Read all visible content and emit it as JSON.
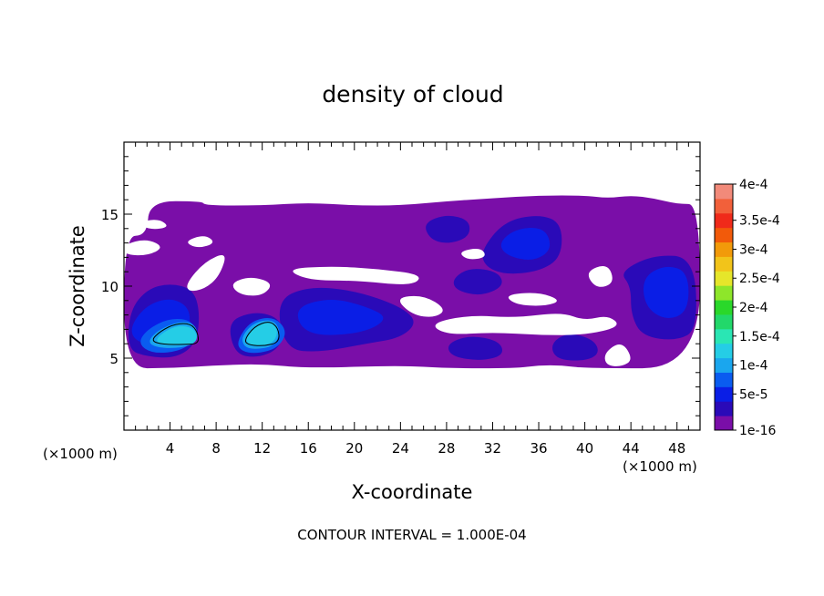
{
  "chart_data": {
    "type": "heatmap",
    "title": "density of cloud",
    "xlabel": "X-coordinate",
    "ylabel": "Z-coordinate",
    "x_unit_left": "(×1000 m)",
    "x_unit_right": "(×1000 m)",
    "xlim": [
      0,
      50
    ],
    "ylim": [
      0,
      20
    ],
    "x_ticks": [
      4,
      8,
      12,
      16,
      20,
      24,
      28,
      32,
      36,
      40,
      44,
      48
    ],
    "y_ticks": [
      5,
      10,
      15
    ],
    "x_minor_step": 1,
    "y_minor_step": 1,
    "grid": false,
    "footnote": "CONTOUR INTERVAL = 1.000E-04",
    "colorbar": {
      "placement": "right",
      "levels": [
        {
          "label": "1e-16",
          "color": "#7a0ea8"
        },
        {
          "label": "",
          "color": "#2a0ab8"
        },
        {
          "label": "5e-5",
          "color": "#0a1ee6"
        },
        {
          "label": "",
          "color": "#0a5cf0"
        },
        {
          "label": "1e-4",
          "color": "#1aa6ee"
        },
        {
          "label": "",
          "color": "#25cde6"
        },
        {
          "label": "1.5e-4",
          "color": "#2ae6b4"
        },
        {
          "label": "",
          "color": "#22d86a"
        },
        {
          "label": "2e-4",
          "color": "#2ad82a"
        },
        {
          "label": "",
          "color": "#8ee62a"
        },
        {
          "label": "2.5e-4",
          "color": "#e6e62a"
        },
        {
          "label": "",
          "color": "#f2c41a"
        },
        {
          "label": "3e-4",
          "color": "#f29a0a"
        },
        {
          "label": "",
          "color": "#f25a0a"
        },
        {
          "label": "3.5e-4",
          "color": "#f02a1a"
        },
        {
          "label": "",
          "color": "#f2603a"
        },
        {
          "label": "4e-4",
          "color": "#f28a7a"
        }
      ]
    },
    "regions": [
      {
        "level": 0,
        "points": [
          [
            0,
            13.5
          ],
          [
            2,
            13.5
          ],
          [
            2.2,
            15.9
          ],
          [
            6.8,
            15.9
          ],
          [
            7,
            15.6
          ],
          [
            12,
            15.6
          ],
          [
            16,
            15.8
          ],
          [
            20,
            15.6
          ],
          [
            24,
            15.6
          ],
          [
            28,
            15.9
          ],
          [
            32,
            16.1
          ],
          [
            36,
            16.3
          ],
          [
            40,
            16.3
          ],
          [
            42,
            16.1
          ],
          [
            44,
            16.3
          ],
          [
            46,
            16.1
          ],
          [
            48,
            15.7
          ],
          [
            50,
            15.7
          ],
          [
            50,
            4.3
          ],
          [
            40,
            4.3
          ],
          [
            38,
            4.5
          ],
          [
            36,
            4.5
          ],
          [
            34,
            4.3
          ],
          [
            28,
            4.3
          ],
          [
            24,
            4.5
          ],
          [
            16,
            4.3
          ],
          [
            12,
            4.6
          ],
          [
            8,
            4.5
          ],
          [
            4,
            4.3
          ],
          [
            0,
            4.3
          ]
        ]
      },
      {
        "level": 1,
        "points": [
          [
            0.5,
            8.3
          ],
          [
            2,
            9.8
          ],
          [
            4,
            10.2
          ],
          [
            6,
            9.8
          ],
          [
            6.6,
            8.2
          ],
          [
            6.3,
            6
          ],
          [
            4.5,
            5
          ],
          [
            2,
            5.1
          ],
          [
            0.3,
            5.6
          ]
        ]
      },
      {
        "level": 1,
        "points": [
          [
            9,
            7.5
          ],
          [
            11,
            8.2
          ],
          [
            13,
            8
          ],
          [
            14,
            7
          ],
          [
            13.4,
            5.6
          ],
          [
            11.5,
            5
          ],
          [
            9.6,
            5.3
          ]
        ]
      },
      {
        "level": 1,
        "points": [
          [
            13.2,
            9
          ],
          [
            16,
            10
          ],
          [
            20,
            9.7
          ],
          [
            24,
            8.6
          ],
          [
            25.5,
            7.5
          ],
          [
            24,
            6.4
          ],
          [
            21,
            6
          ],
          [
            17,
            5.4
          ],
          [
            14,
            5.6
          ]
        ]
      },
      {
        "level": 1,
        "points": [
          [
            26,
            14.4
          ],
          [
            28,
            15
          ],
          [
            30,
            14.6
          ],
          [
            30,
            13.4
          ],
          [
            28,
            12.9
          ],
          [
            26.5,
            13.3
          ]
        ]
      },
      {
        "level": 1,
        "points": [
          [
            31,
            12.5
          ],
          [
            33,
            14.5
          ],
          [
            36,
            15
          ],
          [
            38,
            14.4
          ],
          [
            38,
            12
          ],
          [
            36,
            11
          ],
          [
            33,
            10.8
          ],
          [
            31.3,
            11.4
          ]
        ]
      },
      {
        "level": 1,
        "points": [
          [
            28.5,
            10.5
          ],
          [
            30,
            11.3
          ],
          [
            32.5,
            11
          ],
          [
            33,
            10
          ],
          [
            31,
            9.3
          ],
          [
            28.8,
            9.7
          ]
        ]
      },
      {
        "level": 1,
        "points": [
          [
            43,
            11
          ],
          [
            46,
            12.2
          ],
          [
            49.5,
            12
          ],
          [
            49.8,
            7
          ],
          [
            48,
            6.2
          ],
          [
            45,
            6.5
          ],
          [
            44,
            8
          ],
          [
            44,
            10
          ]
        ]
      },
      {
        "level": 1,
        "points": [
          [
            37,
            6
          ],
          [
            38.5,
            6.8
          ],
          [
            40.8,
            6.3
          ],
          [
            41.3,
            5.3
          ],
          [
            40,
            4.8
          ],
          [
            37.5,
            4.9
          ]
        ]
      },
      {
        "level": 1,
        "points": [
          [
            28,
            6
          ],
          [
            30,
            6.6
          ],
          [
            32.6,
            6.2
          ],
          [
            33,
            5.2
          ],
          [
            31,
            4.8
          ],
          [
            28.4,
            5.1
          ]
        ]
      },
      {
        "level": 2,
        "points": [
          [
            0.6,
            7.3
          ],
          [
            2,
            8.7
          ],
          [
            4,
            9.2
          ],
          [
            5.6,
            8.6
          ],
          [
            5.8,
            7.2
          ],
          [
            4.6,
            6
          ],
          [
            2.5,
            5.8
          ],
          [
            0.8,
            6.3
          ]
        ]
      },
      {
        "level": 2,
        "points": [
          [
            15,
            8.6
          ],
          [
            18,
            9.2
          ],
          [
            21,
            8.6
          ],
          [
            23,
            7.8
          ],
          [
            21,
            6.8
          ],
          [
            17,
            6.5
          ],
          [
            15.2,
            7.2
          ]
        ]
      },
      {
        "level": 2,
        "points": [
          [
            32.5,
            13
          ],
          [
            34,
            14
          ],
          [
            36.5,
            14.1
          ],
          [
            37.2,
            12.6
          ],
          [
            35.6,
            11.7
          ],
          [
            33.2,
            12.1
          ]
        ]
      },
      {
        "level": 2,
        "points": [
          [
            45,
            10.6
          ],
          [
            47,
            11.5
          ],
          [
            49,
            11
          ],
          [
            49,
            8.2
          ],
          [
            47,
            7.6
          ],
          [
            45.2,
            8.6
          ]
        ]
      },
      {
        "level": 3,
        "points": [
          [
            1.2,
            6
          ],
          [
            2,
            7
          ],
          [
            4,
            7.8
          ],
          [
            6,
            7.6
          ],
          [
            6.3,
            6.4
          ],
          [
            5,
            5.5
          ],
          [
            2.5,
            5.3
          ]
        ]
      },
      {
        "level": 3,
        "points": [
          [
            9.8,
            6.2
          ],
          [
            11,
            7.6
          ],
          [
            13,
            7.9
          ],
          [
            14.2,
            6.9
          ],
          [
            13.4,
            5.7
          ],
          [
            11.5,
            5.3
          ],
          [
            10.1,
            5.5
          ]
        ]
      },
      {
        "level": 4,
        "points": [
          [
            2,
            6.1
          ],
          [
            3,
            7
          ],
          [
            5,
            7.6
          ],
          [
            6.3,
            7.3
          ],
          [
            6.4,
            6.1
          ],
          [
            5,
            5.7
          ],
          [
            3,
            5.7
          ]
        ]
      },
      {
        "level": 4,
        "points": [
          [
            10.2,
            6.5
          ],
          [
            11.3,
            7.5
          ],
          [
            13,
            7.7
          ],
          [
            13.6,
            6.8
          ],
          [
            13,
            5.8
          ],
          [
            11.3,
            5.6
          ],
          [
            10.4,
            5.8
          ]
        ]
      },
      {
        "level": 5,
        "points": [
          [
            2.7,
            6.3
          ],
          [
            3.8,
            7
          ],
          [
            5,
            7.3
          ],
          [
            6.2,
            7
          ],
          [
            6.4,
            6.1
          ],
          [
            5,
            5.9
          ],
          [
            3.2,
            5.9
          ]
        ]
      },
      {
        "level": 5,
        "points": [
          [
            10.6,
            6.6
          ],
          [
            11.6,
            7.4
          ],
          [
            12.9,
            7.5
          ],
          [
            13.4,
            6.8
          ],
          [
            12.9,
            6
          ],
          [
            11.4,
            5.8
          ],
          [
            10.7,
            6
          ]
        ]
      }
    ],
    "holes": [
      {
        "points": [
          [
            5.4,
            10.2
          ],
          [
            7,
            11.7
          ],
          [
            9,
            12.4
          ],
          [
            8.3,
            10.7
          ],
          [
            7,
            9.8
          ],
          [
            5.6,
            9.6
          ]
        ]
      },
      {
        "points": [
          [
            9.2,
            10.2
          ],
          [
            11,
            10.7
          ],
          [
            13,
            10.2
          ],
          [
            12,
            9.3
          ],
          [
            10,
            9.4
          ]
        ]
      },
      {
        "points": [
          [
            14,
            11.2
          ],
          [
            18,
            11.4
          ],
          [
            22,
            11.2
          ],
          [
            26,
            10.8
          ],
          [
            25,
            10
          ],
          [
            20,
            10.4
          ],
          [
            16,
            10.4
          ]
        ]
      },
      {
        "points": [
          [
            23.5,
            9.2
          ],
          [
            26,
            9.4
          ],
          [
            28,
            8.4
          ],
          [
            27,
            7.8
          ],
          [
            25,
            8
          ]
        ]
      },
      {
        "points": [
          [
            26.5,
            7.4
          ],
          [
            30,
            8
          ],
          [
            34,
            7.8
          ],
          [
            38,
            8.2
          ],
          [
            40,
            7.6
          ],
          [
            42,
            8
          ],
          [
            43.2,
            7.2
          ],
          [
            40,
            6.6
          ],
          [
            36,
            6.6
          ],
          [
            32,
            6.8
          ],
          [
            28,
            6.6
          ]
        ]
      },
      {
        "points": [
          [
            33,
            9.4
          ],
          [
            36,
            9.6
          ],
          [
            38,
            9
          ],
          [
            36.5,
            8.6
          ],
          [
            34,
            8.7
          ]
        ]
      },
      {
        "points": [
          [
            40,
            11
          ],
          [
            42,
            11.6
          ],
          [
            42.6,
            10.2
          ],
          [
            41,
            9.8
          ]
        ]
      },
      {
        "points": [
          [
            41.7,
            5.4
          ],
          [
            43.2,
            6.2
          ],
          [
            44.2,
            4.9
          ],
          [
            43.2,
            4.4
          ],
          [
            41.8,
            4.5
          ]
        ]
      },
      {
        "points": [
          [
            0,
            12.9
          ],
          [
            2,
            13.3
          ],
          [
            3.5,
            12.7
          ],
          [
            2,
            12.1
          ],
          [
            0,
            12.2
          ]
        ]
      },
      {
        "points": [
          [
            1,
            14.4
          ],
          [
            3,
            14.7
          ],
          [
            4,
            14.1
          ],
          [
            2.3,
            13.9
          ]
        ]
      },
      {
        "points": [
          [
            5.2,
            13.1
          ],
          [
            7,
            13.6
          ],
          [
            8,
            13
          ],
          [
            6.4,
            12.6
          ]
        ]
      },
      {
        "points": [
          [
            29,
            12.4
          ],
          [
            31,
            12.7
          ],
          [
            31.5,
            12
          ],
          [
            29.8,
            11.8
          ]
        ]
      }
    ],
    "contour_lines": [
      {
        "points": [
          [
            2.3,
            6.2
          ],
          [
            3.2,
            6.9
          ],
          [
            4.5,
            7.4
          ],
          [
            5.8,
            7.4
          ],
          [
            6.4,
            6.8
          ],
          [
            6.5,
            6
          ],
          [
            5.2,
            5.95
          ],
          [
            3.4,
            5.95
          ]
        ]
      },
      {
        "points": [
          [
            10.4,
            6.2
          ],
          [
            11.3,
            7.2
          ],
          [
            12.6,
            7.6
          ],
          [
            13.4,
            7.1
          ],
          [
            13.5,
            6.1
          ],
          [
            12.2,
            5.85
          ],
          [
            10.9,
            5.9
          ]
        ]
      }
    ]
  }
}
